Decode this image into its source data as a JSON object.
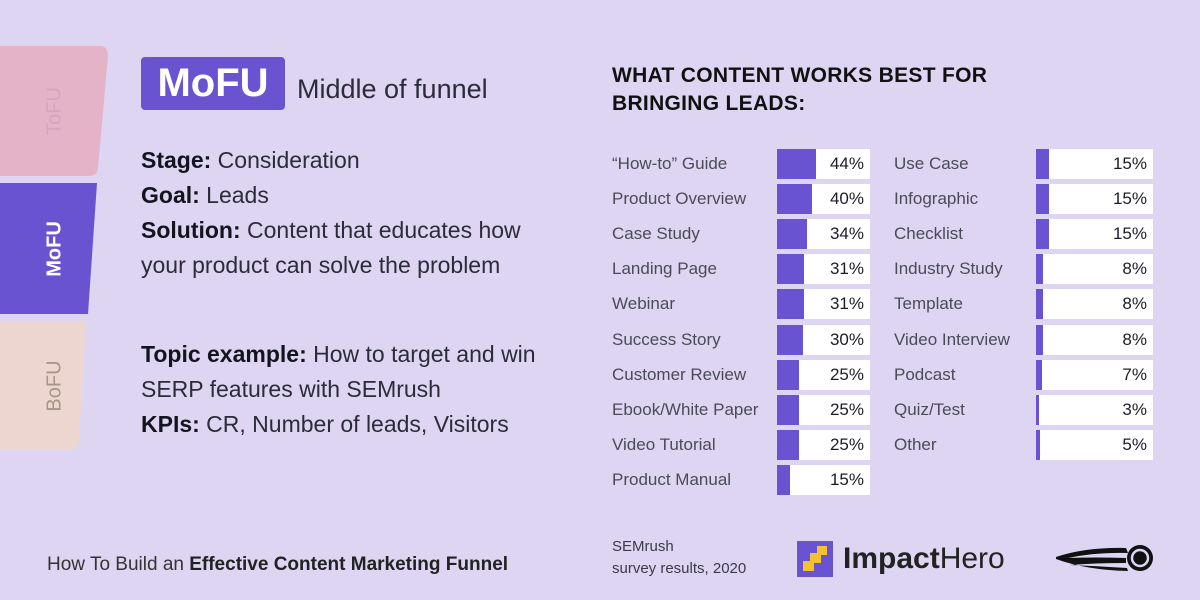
{
  "funnel": {
    "tabs": [
      {
        "label": "ToFU",
        "color": "#e5b3c7"
      },
      {
        "label": "MoFU",
        "color": "#6a53d0"
      },
      {
        "label": "BoFU",
        "color": "#ecd6cf"
      }
    ]
  },
  "stage": {
    "badge": "MoFU",
    "subtitle": "Middle of funnel"
  },
  "info": {
    "stage_key": "Stage:",
    "stage_val": " Consideration",
    "goal_key": "Goal:",
    "goal_val": " Leads",
    "solution_key": "Solution:",
    "solution_val": " Content that educates how your product can solve the problem",
    "topic_key": "Topic example:",
    "topic_val": " How to target and win SERP features with SEMrush",
    "kpi_key": "KPIs:",
    "kpi_val": " CR, Number of leads, Visitors"
  },
  "footer": {
    "prefix": "How To Build an ",
    "bold": "Effective Content Marketing Funnel"
  },
  "chart_data": {
    "type": "bar",
    "title": "WHAT CONTENT WORKS BEST FOR BRINGING LEADS:",
    "xlim": [
      0,
      100
    ],
    "unit": "%",
    "accent_color": "#6a53d0",
    "categories": [
      "“How-to” Guide",
      "Product Overview",
      "Case Study",
      "Landing Page",
      "Webinar",
      "Success Story",
      "Customer Review",
      "Ebook/White Paper",
      "Video Tutorial",
      "Product Manual",
      "Use Case",
      "Infographic",
      "Checklist",
      "Industry Study",
      "Template",
      "Video Interview",
      "Podcast",
      "Quiz/Test",
      "Other"
    ],
    "values": [
      44,
      40,
      34,
      31,
      31,
      30,
      25,
      25,
      25,
      15,
      15,
      15,
      15,
      8,
      8,
      8,
      7,
      3,
      5
    ],
    "value_labels": [
      "44%",
      "40%",
      "34%",
      "31%",
      "31%",
      "30%",
      "25%",
      "25%",
      "25%",
      "15%",
      "15%",
      "15%",
      "15%",
      "8%",
      "8%",
      "8%",
      "7%",
      "3%",
      "5%"
    ]
  },
  "source": {
    "line1": "SEMrush",
    "line2": "survey results, 2020"
  },
  "logos": {
    "impact_strong": "Impact",
    "impact_light": "Hero"
  }
}
